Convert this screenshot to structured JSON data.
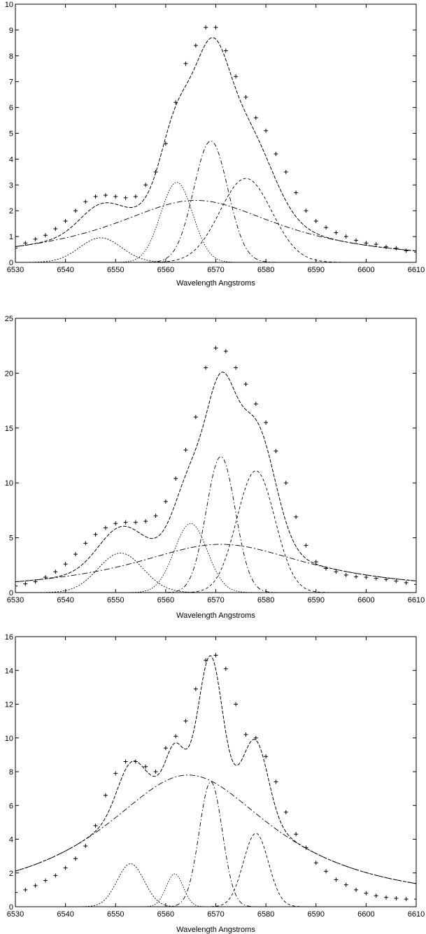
{
  "chart_data": [
    {
      "type": "line",
      "title": "",
      "xlabel": "Wavelength Angstroms",
      "ylabel": "",
      "xlim": [
        6530,
        6610
      ],
      "ylim": [
        0,
        10
      ],
      "xticks": [
        6530,
        6540,
        6550,
        6560,
        6570,
        6580,
        6590,
        6600,
        6610
      ],
      "yticks": [
        0,
        1,
        2,
        3,
        4,
        5,
        6,
        7,
        8,
        9,
        10
      ],
      "grid": false,
      "legend": "none",
      "observed": {
        "x": [
          6530,
          6532,
          6534,
          6536,
          6538,
          6540,
          6542,
          6544,
          6546,
          6548,
          6550,
          6552,
          6554,
          6556,
          6558,
          6560,
          6562,
          6564,
          6566,
          6568,
          6570,
          6572,
          6574,
          6576,
          6578,
          6580,
          6582,
          6584,
          6586,
          6588,
          6590,
          6592,
          6594,
          6596,
          6598,
          6600,
          6602,
          6604,
          6606,
          6608,
          6610
        ],
        "y": [
          0.55,
          0.75,
          0.9,
          1.05,
          1.3,
          1.6,
          2.0,
          2.35,
          2.55,
          2.6,
          2.55,
          2.5,
          2.55,
          3.0,
          3.5,
          4.6,
          6.2,
          7.7,
          8.4,
          9.1,
          9.1,
          8.2,
          7.2,
          6.4,
          5.6,
          5.1,
          4.2,
          3.5,
          2.7,
          2.0,
          1.6,
          1.35,
          1.15,
          1.0,
          0.85,
          0.75,
          0.7,
          0.6,
          0.55,
          0.45,
          0.4
        ]
      },
      "gaussians": [
        {
          "center": 6547,
          "amplitude": 0.95,
          "sigma": 4.2
        },
        {
          "center": 6562.2,
          "amplitude": 3.1,
          "sigma": 3.2
        },
        {
          "center": 6569,
          "amplitude": 4.7,
          "sigma": 3.4
        },
        {
          "center": 6576,
          "amplitude": 3.25,
          "sigma": 5.2
        }
      ],
      "broad": {
        "center": 6566,
        "amplitude": 2.4,
        "hwhm": 21
      }
    },
    {
      "type": "line",
      "title": "",
      "xlabel": "Wavelength Angstroms",
      "ylabel": "",
      "xlim": [
        6530,
        6610
      ],
      "ylim": [
        0,
        25
      ],
      "xticks": [
        6530,
        6540,
        6550,
        6560,
        6570,
        6580,
        6590,
        6600,
        6610
      ],
      "yticks": [
        0,
        5,
        10,
        15,
        20,
        25
      ],
      "grid": false,
      "legend": "none",
      "observed": {
        "x": [
          6530,
          6532,
          6534,
          6536,
          6538,
          6540,
          6542,
          6544,
          6546,
          6548,
          6550,
          6552,
          6554,
          6556,
          6558,
          6560,
          6562,
          6564,
          6566,
          6568,
          6570,
          6572,
          6574,
          6576,
          6578,
          6580,
          6582,
          6584,
          6586,
          6588,
          6590,
          6592,
          6594,
          6596,
          6598,
          6600,
          6602,
          6604,
          6606,
          6608,
          6610
        ],
        "y": [
          0.6,
          0.8,
          1.0,
          1.4,
          1.9,
          2.6,
          3.5,
          4.5,
          5.3,
          5.9,
          6.3,
          6.4,
          6.4,
          6.5,
          7.0,
          8.3,
          10.4,
          13.0,
          16.0,
          20.5,
          22.3,
          22.0,
          20.5,
          19.0,
          17.2,
          15.5,
          12.9,
          10.0,
          6.9,
          4.3,
          2.8,
          2.2,
          1.9,
          1.6,
          1.45,
          1.4,
          1.3,
          1.2,
          1.05,
          0.9,
          0.75
        ]
      },
      "gaussians": [
        {
          "center": 6551,
          "amplitude": 3.6,
          "sigma": 4.5
        },
        {
          "center": 6565,
          "amplitude": 6.3,
          "sigma": 3.3
        },
        {
          "center": 6571,
          "amplitude": 12.4,
          "sigma": 2.9
        },
        {
          "center": 6578,
          "amplitude": 11.1,
          "sigma": 3.8
        }
      ],
      "broad": {
        "center": 6571,
        "amplitude": 4.4,
        "hwhm": 22
      }
    },
    {
      "type": "line",
      "title": "",
      "xlabel": "Wavelength Angstroms",
      "ylabel": "",
      "xlim": [
        6530,
        6610
      ],
      "ylim": [
        0,
        16
      ],
      "xticks": [
        6530,
        6540,
        6550,
        6560,
        6570,
        6580,
        6590,
        6600,
        6610
      ],
      "yticks": [
        0,
        2,
        4,
        6,
        8,
        10,
        12,
        14,
        16
      ],
      "grid": false,
      "legend": "none",
      "observed": {
        "x": [
          6530,
          6532,
          6534,
          6536,
          6538,
          6540,
          6542,
          6544,
          6546,
          6548,
          6550,
          6552,
          6554,
          6556,
          6558,
          6560,
          6562,
          6564,
          6566,
          6568,
          6570,
          6572,
          6574,
          6576,
          6578,
          6580,
          6582,
          6584,
          6586,
          6588,
          6590,
          6592,
          6594,
          6596,
          6598,
          6600,
          6602,
          6604,
          6606,
          6608,
          6610
        ],
        "y": [
          0.85,
          1.0,
          1.25,
          1.55,
          1.85,
          2.3,
          2.85,
          3.6,
          4.8,
          6.6,
          7.9,
          8.6,
          8.6,
          8.3,
          8.0,
          9.4,
          10.1,
          11.0,
          12.9,
          14.6,
          14.9,
          14.1,
          12.0,
          10.2,
          10.0,
          8.9,
          7.4,
          5.6,
          4.3,
          3.5,
          2.6,
          2.1,
          1.6,
          1.3,
          1.0,
          0.8,
          0.65,
          0.55,
          0.5,
          0.45,
          0.45
        ]
      },
      "gaussians": [
        {
          "center": 6553,
          "amplitude": 2.55,
          "sigma": 2.7
        },
        {
          "center": 6561.8,
          "amplitude": 1.95,
          "sigma": 1.7
        },
        {
          "center": 6569,
          "amplitude": 7.4,
          "sigma": 2.3
        },
        {
          "center": 6578,
          "amplitude": 4.35,
          "sigma": 2.5
        }
      ],
      "broad": {
        "center": 6564.5,
        "amplitude": 7.8,
        "hwhm": 21
      }
    }
  ]
}
